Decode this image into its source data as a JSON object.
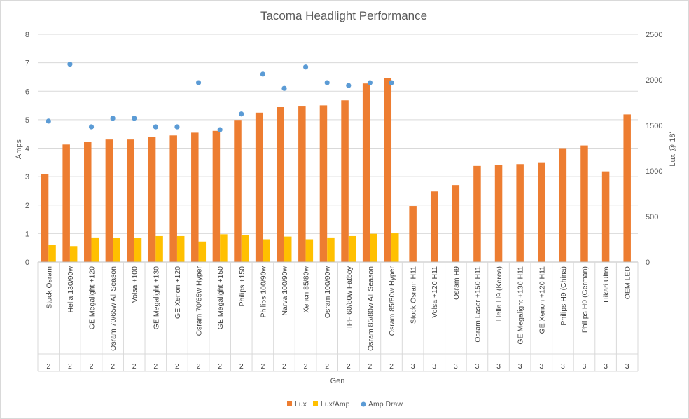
{
  "chart_data": {
    "type": "bar",
    "title": "Tacoma Headlight Performance",
    "categories": [
      "Stock Osram",
      "Hella 130/90w",
      "GE Megalight +120",
      "Osram 70/65w All Season",
      "Volsa +100",
      "GE Megalight +130",
      "GE Xenon +120",
      "Osram 70/65w Hyper",
      "GE Megalight +150",
      "Philips +150",
      "Philips 100/90w",
      "Narva 100/90w",
      "Xencn 85/80w",
      "Osram 100/90w",
      "IPF 60/80w Fatboy",
      "Osram 85/80w All Season",
      "Osram 85/80w Hyper",
      "Stock Osram H11",
      "Volsa +120 H11",
      "Osram H9",
      "Osram Laser +150 H11",
      "Hella H9 (Korea)",
      "GE Megalight +130 H11",
      "GE Xenon +120 H11",
      "Philips H9 (China)",
      "Philips H9 (German)",
      "Hikari Ultra",
      "OEM LED"
    ],
    "gen": [
      "2",
      "2",
      "2",
      "2",
      "2",
      "2",
      "2",
      "2",
      "2",
      "2",
      "2",
      "2",
      "2",
      "2",
      "2",
      "2",
      "2",
      "3",
      "3",
      "3",
      "3",
      "3",
      "3",
      "3",
      "3",
      "3",
      "3",
      "3"
    ],
    "series": [
      {
        "name": "Lux",
        "axis": "right",
        "kind": "bar",
        "color": "#ed7d31",
        "values": [
          965,
          1290,
          1320,
          1345,
          1345,
          1375,
          1390,
          1420,
          1440,
          1560,
          1640,
          1705,
          1715,
          1720,
          1775,
          1960,
          2020,
          615,
          775,
          845,
          1055,
          1065,
          1075,
          1095,
          1250,
          1280,
          995,
          1620
        ]
      },
      {
        "name": "Lux/Amp",
        "axis": "right",
        "kind": "bar",
        "color": "#ffc000",
        "values": [
          185,
          175,
          270,
          265,
          265,
          285,
          285,
          225,
          305,
          295,
          250,
          280,
          250,
          270,
          285,
          310,
          315,
          null,
          null,
          null,
          null,
          null,
          null,
          null,
          null,
          null,
          null,
          null
        ]
      },
      {
        "name": "Amp Draw",
        "axis": "left",
        "kind": "scatter",
        "color": "#5b9bd5",
        "values": [
          4.95,
          6.95,
          4.75,
          5.05,
          5.05,
          4.75,
          4.75,
          6.3,
          4.65,
          5.2,
          6.6,
          6.1,
          6.85,
          6.3,
          6.2,
          6.3,
          6.3,
          null,
          null,
          null,
          null,
          null,
          null,
          null,
          null,
          null,
          null,
          null
        ]
      }
    ],
    "ylabel": "Amps",
    "y2label": "Lux @ 18'",
    "xlabel": "Gen",
    "ylim": [
      0,
      8
    ],
    "y2lim": [
      0,
      2500
    ],
    "yticks": [
      "0",
      "1",
      "2",
      "3",
      "4",
      "5",
      "6",
      "7",
      "8"
    ],
    "y2ticks": [
      "0",
      "500",
      "1000",
      "1500",
      "2000",
      "2500"
    ],
    "grid": true,
    "legend_position": "bottom"
  }
}
